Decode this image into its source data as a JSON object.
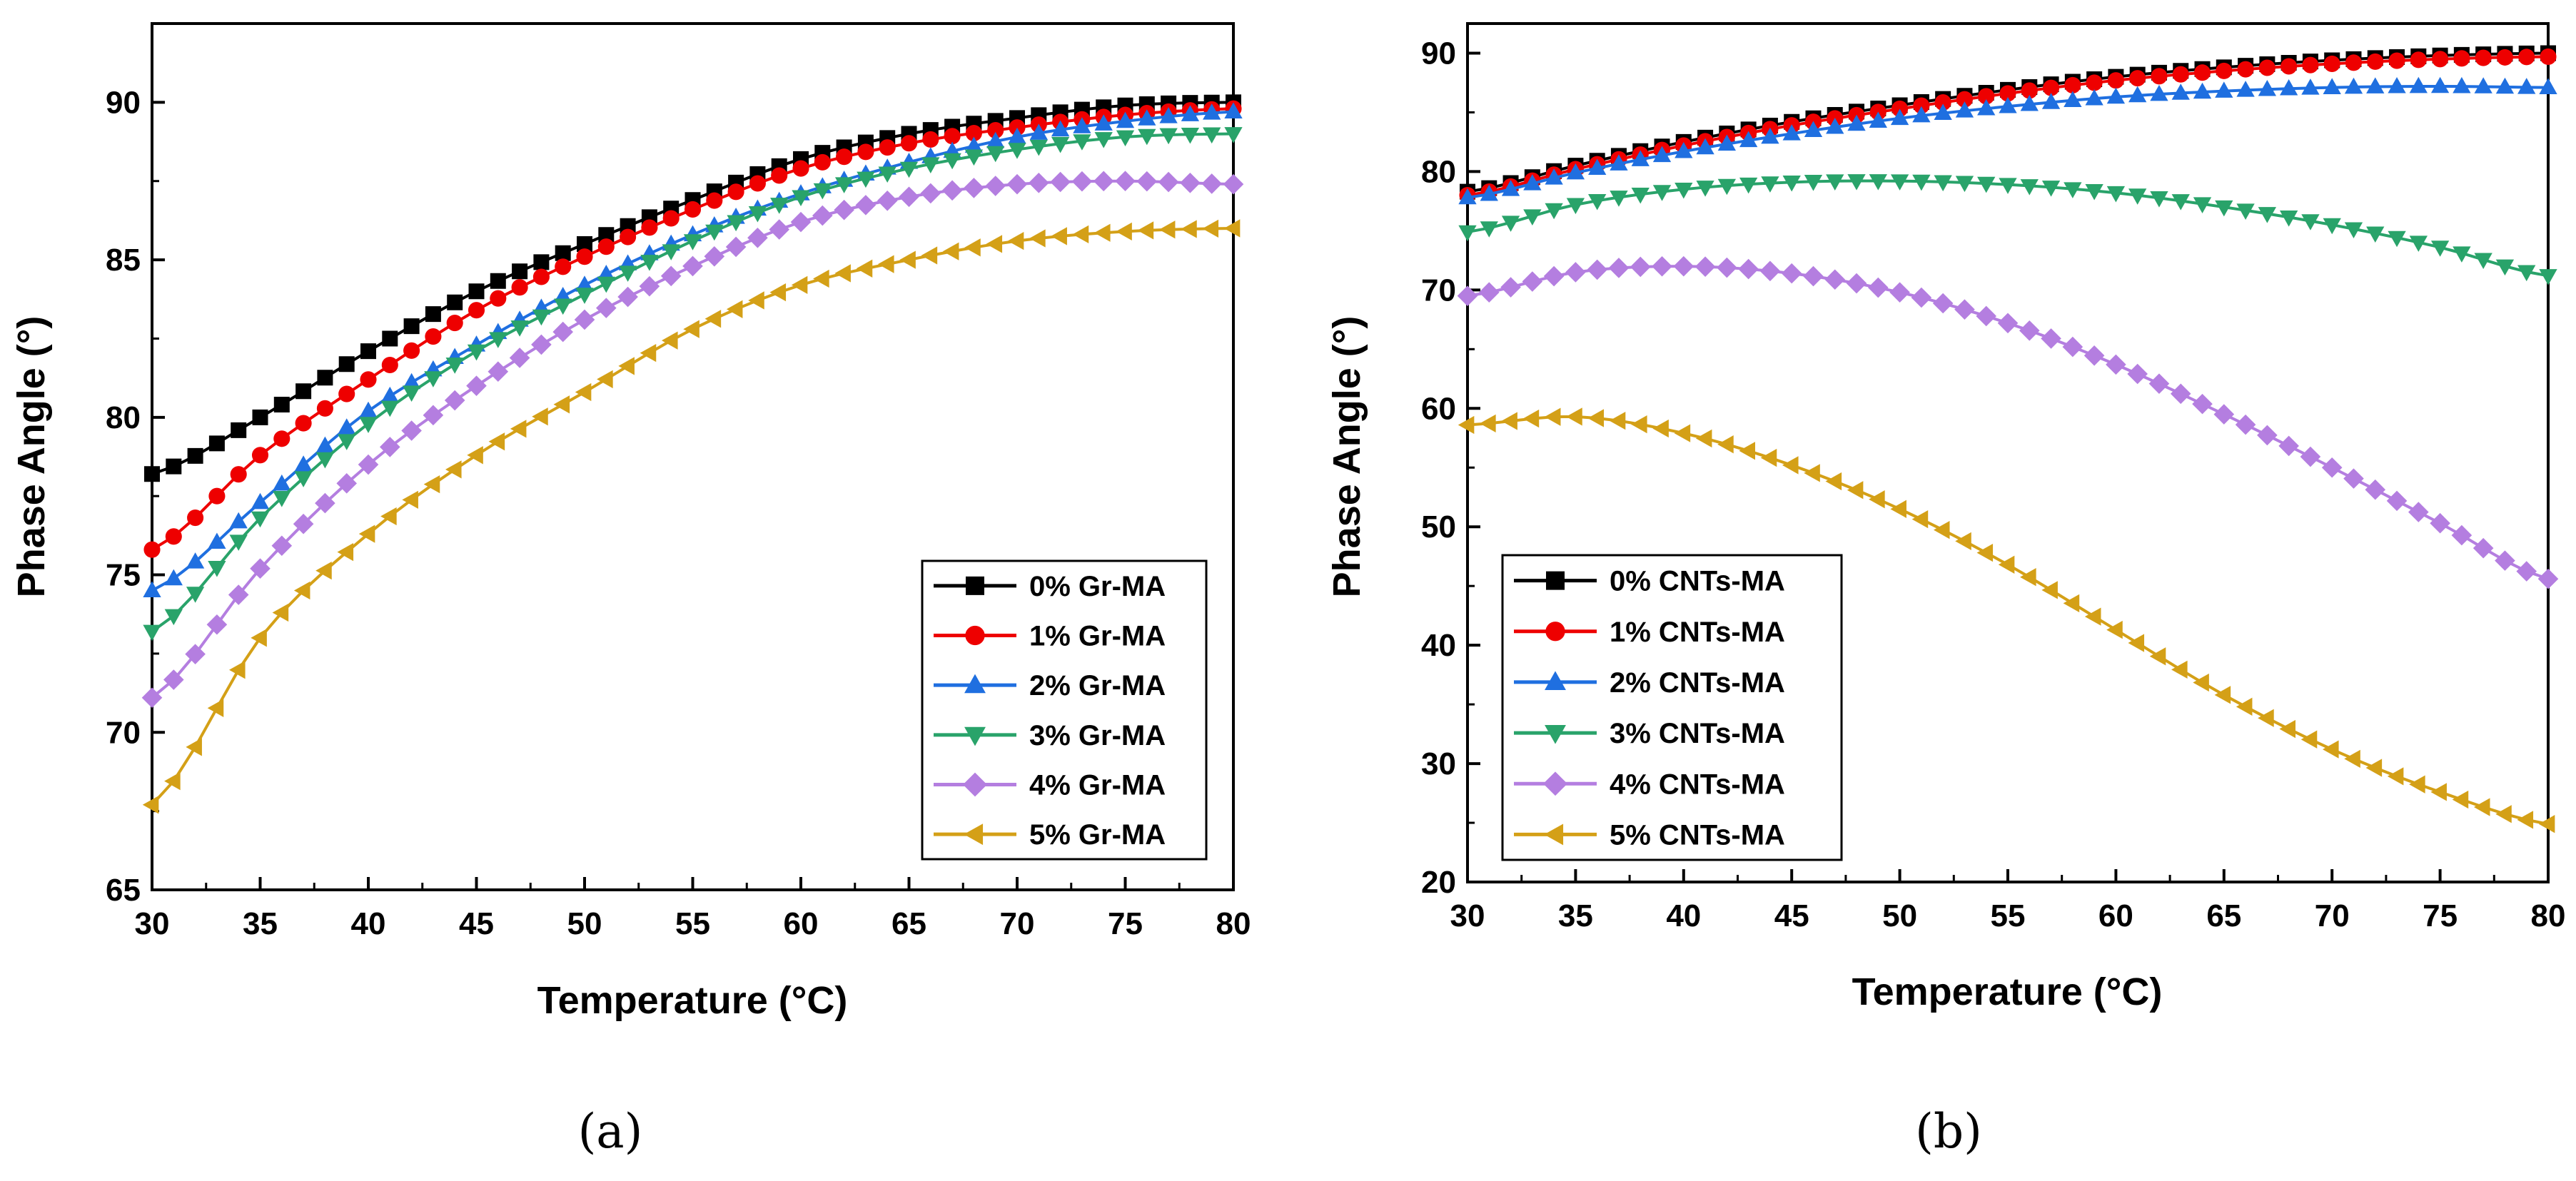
{
  "chart_data": [
    {
      "type": "line",
      "caption": "(a)",
      "xlabel": "Temperature (°C)",
      "ylabel": "Phase Angle (°)",
      "xlim": [
        30,
        80
      ],
      "ylim": [
        65,
        92.5
      ],
      "xticks": [
        30,
        35,
        40,
        45,
        50,
        55,
        60,
        65,
        70,
        75,
        80
      ],
      "yticks": [
        65,
        70,
        75,
        80,
        85,
        90
      ],
      "grid": false,
      "legend": "bottom-right",
      "x": [
        30,
        35,
        40,
        45,
        50,
        55,
        60,
        65,
        70,
        75,
        80
      ],
      "series": [
        {
          "name": "0% Gr-MA",
          "color": "#000000",
          "marker": "square",
          "values": [
            78.2,
            80.0,
            82.1,
            84.0,
            85.5,
            86.9,
            88.2,
            89.0,
            89.5,
            89.9,
            90.0
          ]
        },
        {
          "name": "1% Gr-MA",
          "color": "#ee0000",
          "marker": "circle",
          "values": [
            75.8,
            78.8,
            81.2,
            83.4,
            85.1,
            86.6,
            87.9,
            88.7,
            89.2,
            89.6,
            89.8
          ]
        },
        {
          "name": "2% Gr-MA",
          "color": "#1f6fe0",
          "marker": "triangle-up",
          "values": [
            74.5,
            77.3,
            80.2,
            82.3,
            84.2,
            85.8,
            87.1,
            88.1,
            88.9,
            89.4,
            89.7
          ]
        },
        {
          "name": "3% Gr-MA",
          "color": "#29a36a",
          "marker": "triangle-down",
          "values": [
            73.2,
            76.8,
            79.8,
            82.1,
            83.9,
            85.6,
            87.0,
            87.9,
            88.5,
            88.9,
            89.0
          ]
        },
        {
          "name": "4% Gr-MA",
          "color": "#b47ee0",
          "marker": "diamond",
          "values": [
            71.1,
            75.2,
            78.5,
            81.0,
            83.1,
            84.8,
            86.2,
            87.0,
            87.4,
            87.5,
            87.4
          ]
        },
        {
          "name": "5% Gr-MA",
          "color": "#d4a017",
          "marker": "triangle-left",
          "values": [
            67.7,
            73.0,
            76.3,
            78.8,
            80.8,
            82.8,
            84.2,
            85.0,
            85.6,
            85.9,
            86.0
          ]
        }
      ]
    },
    {
      "type": "line",
      "caption": "(b)",
      "xlabel": "Temperature (°C)",
      "ylabel": "Phase Angle (°)",
      "xlim": [
        30,
        80
      ],
      "ylim": [
        20,
        92.5
      ],
      "xticks": [
        30,
        35,
        40,
        45,
        50,
        55,
        60,
        65,
        70,
        75,
        80
      ],
      "yticks": [
        20,
        30,
        40,
        50,
        60,
        70,
        80,
        90
      ],
      "grid": false,
      "legend": "bottom-left",
      "x": [
        30,
        35,
        40,
        45,
        50,
        55,
        60,
        65,
        70,
        75,
        80
      ],
      "series": [
        {
          "name": "0% CNTs-MA",
          "color": "#000000",
          "marker": "square",
          "values": [
            78.3,
            80.5,
            82.5,
            84.2,
            85.6,
            86.9,
            88.0,
            88.8,
            89.4,
            89.8,
            90.0
          ]
        },
        {
          "name": "1% CNTs-MA",
          "color": "#ee0000",
          "marker": "circle",
          "values": [
            78.0,
            80.2,
            82.2,
            83.9,
            85.3,
            86.6,
            87.7,
            88.5,
            89.1,
            89.5,
            89.7
          ]
        },
        {
          "name": "2% CNTs-MA",
          "color": "#1f6fe0",
          "marker": "triangle-up",
          "values": [
            77.8,
            79.9,
            81.7,
            83.2,
            84.5,
            85.5,
            86.3,
            86.8,
            87.1,
            87.2,
            87.1
          ]
        },
        {
          "name": "3% CNTs-MA",
          "color": "#29a36a",
          "marker": "triangle-down",
          "values": [
            74.9,
            77.2,
            78.5,
            79.1,
            79.2,
            78.9,
            78.2,
            77.0,
            75.5,
            73.6,
            71.2
          ]
        },
        {
          "name": "4% CNTs-MA",
          "color": "#b47ee0",
          "marker": "diamond",
          "values": [
            69.5,
            71.5,
            72.0,
            71.4,
            69.8,
            67.2,
            63.7,
            59.5,
            55.0,
            50.3,
            45.6
          ]
        },
        {
          "name": "5% CNTs-MA",
          "color": "#d4a017",
          "marker": "triangle-left",
          "values": [
            58.6,
            59.3,
            57.9,
            55.2,
            51.5,
            46.8,
            41.3,
            35.8,
            31.2,
            27.6,
            24.9
          ]
        }
      ]
    }
  ]
}
